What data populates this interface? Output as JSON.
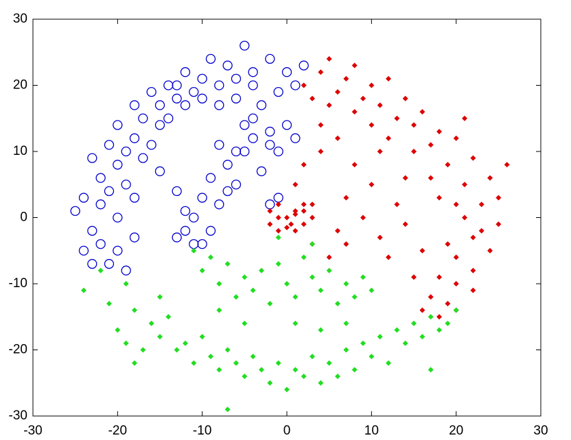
{
  "chart_data": {
    "type": "scatter",
    "xlim": [
      -30,
      30
    ],
    "ylim": [
      -30,
      30
    ],
    "xticks": [
      -30,
      -20,
      -10,
      0,
      10,
      20,
      30
    ],
    "yticks": [
      -30,
      -20,
      -10,
      0,
      10,
      20,
      30
    ],
    "grid": false,
    "series": [
      {
        "color": "#0000cc",
        "marker": "circle",
        "x": [
          2,
          0,
          -2,
          -4,
          -5,
          -6,
          -7,
          -8,
          -9,
          -10,
          -11,
          -12,
          -13,
          -14,
          -15,
          -15,
          -16,
          -17,
          -18,
          -18,
          -19,
          -20,
          -20,
          -21,
          -22,
          -22,
          -23,
          -23,
          -24,
          -24,
          -25,
          -22,
          -21,
          -20,
          -19,
          -20,
          -21,
          -19,
          -17,
          -16,
          -14,
          -12,
          -10,
          -6,
          -4,
          -1,
          1,
          -8,
          -3,
          -18,
          -18,
          -23,
          -15,
          -13,
          -13,
          -12,
          -11,
          -10,
          -13,
          -9,
          -8,
          -7,
          -6,
          -8,
          -5,
          -4,
          -3,
          -2,
          -1,
          0,
          -2,
          -4,
          -5,
          -9,
          -12,
          -1,
          -2,
          -11,
          -7,
          -6,
          1,
          -10
        ],
        "values": [
          23,
          22,
          24,
          22,
          26,
          21,
          23,
          20,
          24,
          21,
          19,
          22,
          18,
          20,
          17,
          14,
          19,
          15,
          12,
          17,
          10,
          14,
          8,
          11,
          6,
          2,
          9,
          -2,
          3,
          -5,
          1,
          -4,
          -7,
          -5,
          -8,
          0,
          4,
          5,
          9,
          11,
          15,
          17,
          18,
          18,
          20,
          19,
          20,
          17,
          17,
          3,
          -3,
          -7,
          7,
          20,
          -3,
          1,
          -4,
          3,
          4,
          6,
          2,
          8,
          5,
          11,
          10,
          12,
          7,
          11,
          10,
          14,
          13,
          15,
          14,
          -2,
          -2,
          3,
          2,
          0,
          4,
          10,
          12,
          -4
        ]
      },
      {
        "color": "#dd0000",
        "marker": "diamond",
        "x": [
          0,
          1,
          -1,
          0.5,
          2,
          -2,
          1,
          3,
          -1,
          2,
          0,
          -2,
          1,
          3,
          -1,
          2,
          2,
          4,
          5,
          6,
          7,
          8,
          9,
          10,
          11,
          12,
          13,
          14,
          15,
          16,
          17,
          18,
          19,
          20,
          21,
          22,
          23,
          24,
          25,
          22,
          21,
          20,
          19,
          18,
          20,
          17,
          16,
          19,
          15,
          22,
          24,
          23,
          25,
          26,
          18,
          20,
          17,
          15,
          12,
          10,
          8,
          5,
          3,
          6,
          4,
          2,
          1,
          8,
          10,
          9,
          11,
          7,
          6,
          12,
          13,
          14,
          14,
          16,
          5,
          3,
          11,
          7,
          4,
          20,
          18,
          22,
          21
        ],
        "values": [
          0,
          1,
          0,
          -1,
          1,
          1,
          -2,
          0,
          2,
          2,
          -1.5,
          -1,
          0.5,
          2,
          -2,
          -1,
          20,
          22,
          24,
          19,
          21,
          23,
          18,
          20,
          17,
          21,
          15,
          18,
          14,
          16,
          11,
          13,
          8,
          12,
          5,
          9,
          2,
          6,
          -1,
          -3,
          0,
          -6,
          -4,
          -9,
          -10,
          -12,
          -14,
          -13,
          -9,
          -8,
          -5,
          -2,
          3,
          8,
          3,
          2,
          6,
          10,
          12,
          14,
          16,
          17,
          18,
          12,
          10,
          8,
          5,
          8,
          5,
          0,
          -3,
          -4,
          -2,
          -6,
          2,
          -1,
          6,
          -5,
          -6,
          -4,
          10,
          3,
          14,
          -14,
          -15,
          -11,
          15
        ]
      },
      {
        "color": "#22dd22",
        "marker": "diamond",
        "x": [
          -24,
          -22,
          -21,
          -20,
          -19,
          -18,
          -17,
          -16,
          -15,
          -14,
          -13,
          -12,
          -11,
          -10,
          -9,
          -8,
          -7,
          -6,
          -5,
          -4,
          -3,
          -2,
          -1,
          0,
          1,
          2,
          3,
          4,
          5,
          6,
          7,
          8,
          9,
          10,
          11,
          12,
          13,
          14,
          15,
          16,
          17,
          18,
          19,
          20,
          17,
          -18,
          -7,
          4,
          -15,
          -19,
          -11,
          -10,
          -9,
          -8,
          -7,
          -6,
          -5,
          -4,
          -3,
          -2,
          -1,
          0,
          1,
          2,
          3,
          4,
          5,
          6,
          7,
          8,
          9,
          10,
          -1,
          3,
          -5,
          1,
          7,
          -8
        ],
        "values": [
          -11,
          -8,
          -13,
          -17,
          -10,
          -14,
          -20,
          -16,
          -18,
          -15,
          -20,
          -19,
          -22,
          -18,
          -21,
          -23,
          -20,
          -22,
          -24,
          -21,
          -23,
          -25,
          -22,
          -26,
          -23,
          -24,
          -21,
          -25,
          -22,
          -24,
          -20,
          -23,
          -19,
          -21,
          -18,
          -22,
          -17,
          -19,
          -16,
          -18,
          -15,
          -17,
          -16,
          -14,
          -23,
          -22,
          -29,
          -17,
          -12,
          -19,
          -5,
          -8,
          -6,
          -10,
          -7,
          -12,
          -9,
          -11,
          -8,
          -13,
          -7,
          -10,
          -12,
          -6,
          -9,
          -11,
          -8,
          -13,
          -10,
          -12,
          -9,
          -11,
          -3,
          -4,
          -16,
          -16,
          -16,
          -14
        ]
      }
    ]
  }
}
